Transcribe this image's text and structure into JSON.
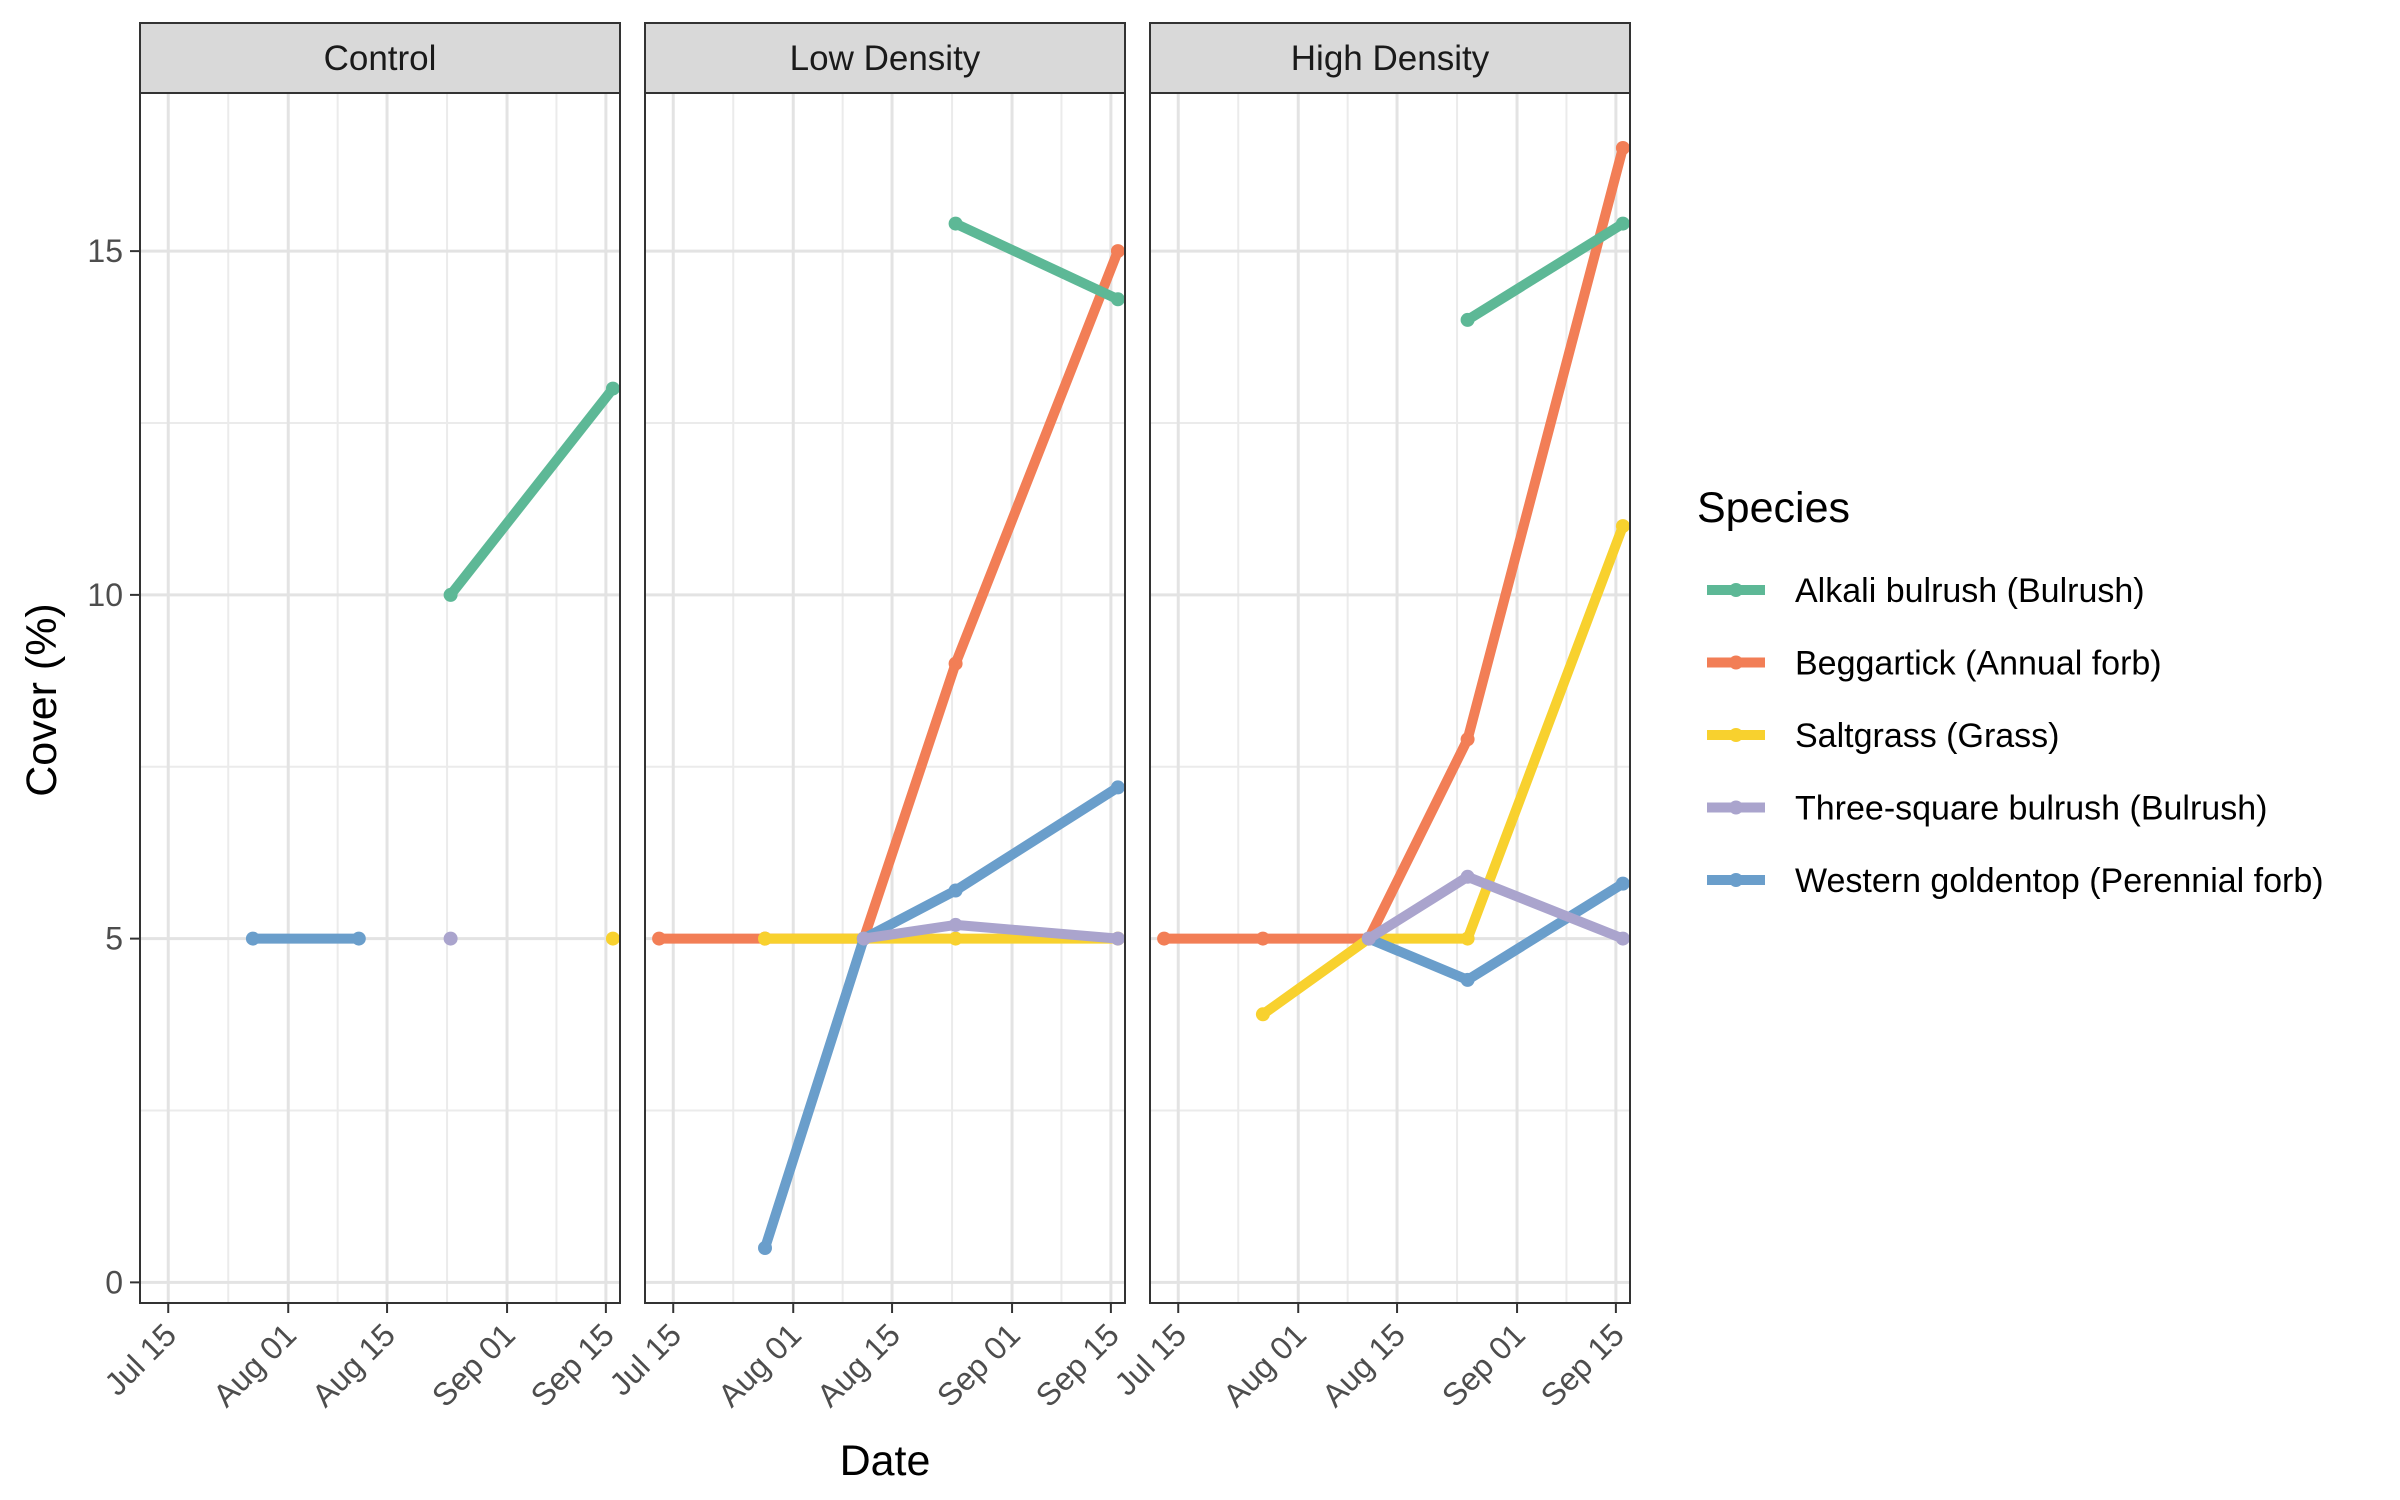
{
  "chart_data": {
    "type": "line",
    "xlabel": "Date",
    "ylabel": "Cover (%)",
    "ylim": [
      -0.3,
      17.3
    ],
    "xlim": [
      "2023-07-11",
      "2023-09-17"
    ],
    "y_ticks": [
      0,
      5,
      10,
      15
    ],
    "x_ticks": [
      {
        "date": "2023-07-15",
        "label": "Jul 15"
      },
      {
        "date": "2023-08-01",
        "label": "Aug 01"
      },
      {
        "date": "2023-08-15",
        "label": "Aug 15"
      },
      {
        "date": "2023-09-01",
        "label": "Sep 01"
      },
      {
        "date": "2023-09-15",
        "label": "Sep 15"
      }
    ],
    "grid": true,
    "legend_position": "right",
    "legend_title": "Species",
    "colors": {
      "Alkali bulrush (Bulrush)": "#5db896",
      "Beggartick (Annual forb)": "#f27e56",
      "Saltgrass (Grass)": "#f8d12e",
      "Three-square bulrush (Bulrush)": "#aaa4cd",
      "Western goldentop (Perennial forb)": "#6a9ecb"
    },
    "legend": [
      "Alkali bulrush (Bulrush)",
      "Beggartick (Annual forb)",
      "Saltgrass (Grass)",
      "Three-square bulrush (Bulrush)",
      "Western goldentop (Perennial forb)"
    ],
    "panels": [
      {
        "title": "Control",
        "series": [
          {
            "name": "Western goldentop (Perennial forb)",
            "points": [
              [
                "2023-07-27",
                5
              ],
              [
                "2023-08-11",
                5
              ]
            ]
          },
          {
            "name": "Alkali bulrush (Bulrush)",
            "points": [
              [
                "2023-08-24",
                10
              ],
              [
                "2023-09-16",
                13
              ]
            ]
          },
          {
            "name": "Three-square bulrush (Bulrush)",
            "points": [
              [
                "2023-08-24",
                5
              ]
            ]
          },
          {
            "name": "Saltgrass (Grass)",
            "points": [
              [
                "2023-09-16",
                5
              ]
            ]
          }
        ]
      },
      {
        "title": "Low Density",
        "series": [
          {
            "name": "Beggartick (Annual forb)",
            "points": [
              [
                "2023-07-13",
                5
              ],
              [
                "2023-07-28",
                5
              ],
              [
                "2023-08-11",
                5
              ],
              [
                "2023-08-24",
                9
              ],
              [
                "2023-09-16",
                15
              ]
            ]
          },
          {
            "name": "Saltgrass (Grass)",
            "points": [
              [
                "2023-07-28",
                5
              ],
              [
                "2023-08-11",
                5
              ],
              [
                "2023-08-24",
                5
              ],
              [
                "2023-09-16",
                5
              ]
            ]
          },
          {
            "name": "Western goldentop (Perennial forb)",
            "points": [
              [
                "2023-07-28",
                0.5
              ],
              [
                "2023-08-11",
                5
              ],
              [
                "2023-08-24",
                5.7
              ],
              [
                "2023-09-16",
                7.2
              ]
            ]
          },
          {
            "name": "Three-square bulrush (Bulrush)",
            "points": [
              [
                "2023-08-11",
                5
              ],
              [
                "2023-08-24",
                5.2
              ],
              [
                "2023-09-16",
                5
              ]
            ]
          },
          {
            "name": "Alkali bulrush (Bulrush)",
            "points": [
              [
                "2023-08-24",
                15.4
              ],
              [
                "2023-09-16",
                14.3
              ]
            ]
          }
        ]
      },
      {
        "title": "High Density",
        "series": [
          {
            "name": "Beggartick (Annual forb)",
            "points": [
              [
                "2023-07-13",
                5
              ],
              [
                "2023-07-27",
                5
              ],
              [
                "2023-08-11",
                5
              ],
              [
                "2023-08-25",
                7.9
              ],
              [
                "2023-09-16",
                16.5
              ]
            ]
          },
          {
            "name": "Saltgrass (Grass)",
            "points": [
              [
                "2023-07-27",
                3.9
              ],
              [
                "2023-08-11",
                5
              ],
              [
                "2023-08-25",
                5
              ],
              [
                "2023-09-16",
                11
              ]
            ]
          },
          {
            "name": "Western goldentop (Perennial forb)",
            "points": [
              [
                "2023-08-11",
                5
              ],
              [
                "2023-08-25",
                4.4
              ],
              [
                "2023-09-16",
                5.8
              ]
            ]
          },
          {
            "name": "Three-square bulrush (Bulrush)",
            "points": [
              [
                "2023-08-11",
                5
              ],
              [
                "2023-08-25",
                5.9
              ],
              [
                "2023-09-16",
                5
              ]
            ]
          },
          {
            "name": "Alkali bulrush (Bulrush)",
            "points": [
              [
                "2023-08-25",
                14
              ],
              [
                "2023-09-16",
                15.4
              ]
            ]
          }
        ]
      }
    ]
  }
}
